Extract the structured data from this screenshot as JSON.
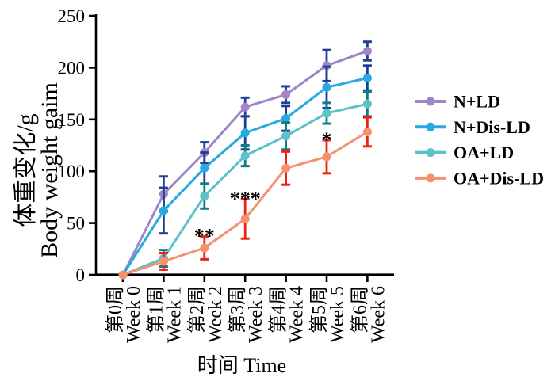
{
  "chart_data": {
    "type": "line",
    "title": "",
    "xlabel": "时间 Time",
    "ylabel": [
      "体重变化/g",
      "Body weight gaim"
    ],
    "x_tick_labels_cn": [
      "第0周",
      "第1周",
      "第2周",
      "第3周",
      "第4周",
      "第5周",
      "第6周"
    ],
    "x_tick_labels_en": [
      "Week 0",
      "Week 1",
      "Week 2",
      "Week 3",
      "Week 4",
      "Week 5",
      "Week 6"
    ],
    "ylim": [
      0,
      250
    ],
    "yticks": [
      0,
      50,
      100,
      150,
      200,
      250
    ],
    "grid": false,
    "legend_position": "right",
    "axis_color": "#000000",
    "background_color": "#ffffff",
    "series": [
      {
        "name": "N+LD",
        "color": "#9e86c8",
        "error_color": "#21409a",
        "values": [
          0,
          78,
          118,
          162,
          174,
          202,
          216
        ],
        "errors": [
          0,
          17,
          10,
          9,
          8,
          15,
          9
        ]
      },
      {
        "name": "N+Dis-LD",
        "color": "#27aae1",
        "error_color": "#1b3f94",
        "values": [
          0,
          62,
          103,
          137,
          151,
          181,
          190
        ],
        "errors": [
          0,
          22,
          15,
          16,
          12,
          20,
          12
        ]
      },
      {
        "name": "OA+LD",
        "color": "#5bc2c9",
        "error_color": "#0f7e84",
        "values": [
          0,
          16,
          76,
          115,
          134,
          156,
          165
        ],
        "errors": [
          0,
          8,
          12,
          10,
          13,
          10,
          12
        ]
      },
      {
        "name": "OA+Dis-LD",
        "color": "#f5916e",
        "error_color": "#ec2313",
        "values": [
          0,
          13,
          26,
          54,
          103,
          114,
          138
        ],
        "errors": [
          0,
          8,
          11,
          19,
          16,
          16,
          14
        ]
      }
    ],
    "annotations": [
      {
        "text": "**",
        "week": 2,
        "series": "OA+Dis-LD"
      },
      {
        "text": "***",
        "week": 3,
        "series": "OA+Dis-LD"
      },
      {
        "text": "*",
        "week": 5,
        "series": "OA+Dis-LD"
      }
    ]
  }
}
